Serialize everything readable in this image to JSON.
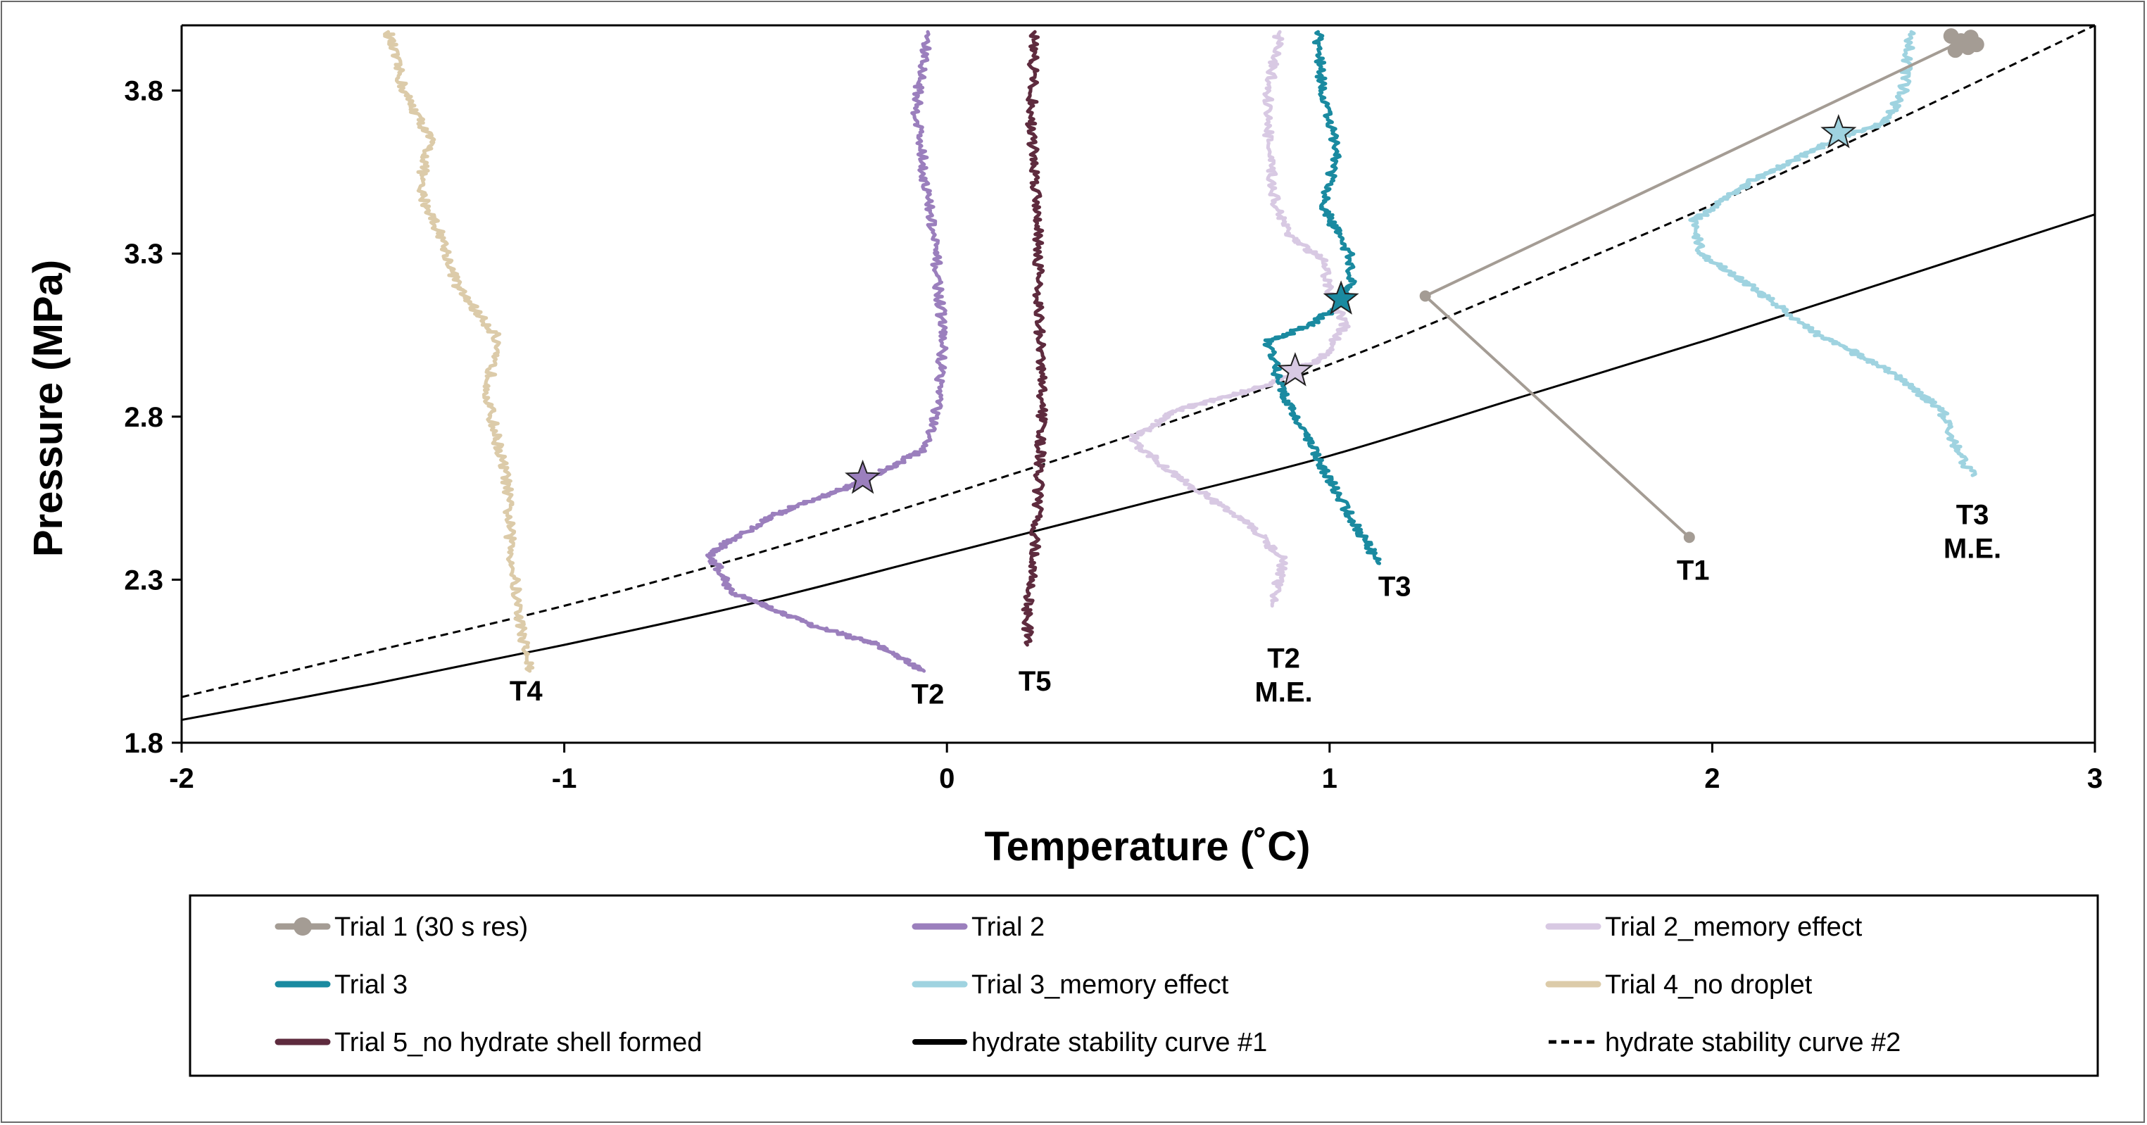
{
  "chart_data": {
    "type": "line",
    "xlabel": "Temperature (˚C)",
    "ylabel": "Pressure (MPa)",
    "xlim": [
      -2,
      3
    ],
    "ylim": [
      1.8,
      4.0
    ],
    "x_ticks": [
      -2,
      -1,
      0,
      1,
      2,
      3
    ],
    "x_tick_labels": [
      "-2",
      "-1",
      "0",
      "1",
      "2",
      "3"
    ],
    "y_ticks": [
      1.8,
      2.3,
      2.8,
      3.3,
      3.8
    ],
    "y_tick_labels": [
      "1.8",
      "2.3",
      "2.8",
      "3.3",
      "3.8"
    ],
    "grid": false,
    "legend_position": "bottom",
    "series": [
      {
        "id": "trial1",
        "name": "Trial 1 (30 s res)",
        "color": "#a49c94",
        "style": "line-marker",
        "points": [
          [
            1.94,
            2.43
          ],
          [
            1.25,
            3.17
          ],
          [
            2.65,
            3.95
          ]
        ]
      },
      {
        "id": "trial2",
        "name": "Trial 2",
        "color": "#9b7fbd",
        "style": "noisy",
        "points": [
          [
            -0.05,
            3.98
          ],
          [
            -0.08,
            3.75
          ],
          [
            -0.06,
            3.55
          ],
          [
            -0.03,
            3.3
          ],
          [
            -0.01,
            3.05
          ],
          [
            -0.02,
            2.85
          ],
          [
            -0.06,
            2.7
          ],
          [
            -0.22,
            2.6
          ],
          [
            -0.45,
            2.5
          ],
          [
            -0.62,
            2.38
          ],
          [
            -0.56,
            2.26
          ],
          [
            -0.35,
            2.16
          ],
          [
            -0.18,
            2.1
          ],
          [
            -0.06,
            2.02
          ]
        ]
      },
      {
        "id": "trial2_me",
        "name": "Trial 2_memory effect",
        "color": "#d8c9e3",
        "style": "noisy",
        "points": [
          [
            0.87,
            3.98
          ],
          [
            0.84,
            3.8
          ],
          [
            0.84,
            3.6
          ],
          [
            0.86,
            3.45
          ],
          [
            0.9,
            3.35
          ],
          [
            0.98,
            3.28
          ],
          [
            1.0,
            3.18
          ],
          [
            1.04,
            3.08
          ],
          [
            0.98,
            2.98
          ],
          [
            0.85,
            2.9
          ],
          [
            0.6,
            2.82
          ],
          [
            0.48,
            2.73
          ],
          [
            0.62,
            2.6
          ],
          [
            0.78,
            2.48
          ],
          [
            0.88,
            2.36
          ],
          [
            0.85,
            2.22
          ]
        ]
      },
      {
        "id": "trial3",
        "name": "Trial 3",
        "color": "#1a8aa0",
        "style": "noisy",
        "points": [
          [
            0.97,
            3.98
          ],
          [
            0.98,
            3.8
          ],
          [
            1.02,
            3.6
          ],
          [
            0.98,
            3.45
          ],
          [
            1.05,
            3.3
          ],
          [
            1.06,
            3.22
          ],
          [
            1.02,
            3.14
          ],
          [
            0.95,
            3.08
          ],
          [
            0.84,
            3.03
          ],
          [
            0.87,
            2.9
          ],
          [
            0.92,
            2.78
          ],
          [
            0.98,
            2.65
          ],
          [
            1.05,
            2.5
          ],
          [
            1.13,
            2.35
          ]
        ]
      },
      {
        "id": "trial3_me",
        "name": "Trial 3_memory effect",
        "color": "#9fd3e0",
        "style": "noisy",
        "points": [
          [
            2.52,
            3.98
          ],
          [
            2.5,
            3.8
          ],
          [
            2.45,
            3.7
          ],
          [
            2.32,
            3.65
          ],
          [
            2.1,
            3.52
          ],
          [
            1.95,
            3.4
          ],
          [
            1.97,
            3.3
          ],
          [
            2.1,
            3.2
          ],
          [
            2.28,
            3.05
          ],
          [
            2.45,
            2.95
          ],
          [
            2.6,
            2.82
          ],
          [
            2.63,
            2.72
          ],
          [
            2.68,
            2.62
          ]
        ]
      },
      {
        "id": "trial4",
        "name": "Trial 4_no droplet",
        "color": "#dccba9",
        "style": "noisy",
        "points": [
          [
            -1.46,
            3.98
          ],
          [
            -1.42,
            3.8
          ],
          [
            -1.35,
            3.65
          ],
          [
            -1.38,
            3.5
          ],
          [
            -1.32,
            3.35
          ],
          [
            -1.28,
            3.2
          ],
          [
            -1.18,
            3.05
          ],
          [
            -1.2,
            2.85
          ],
          [
            -1.15,
            2.6
          ],
          [
            -1.14,
            2.4
          ],
          [
            -1.12,
            2.2
          ],
          [
            -1.09,
            2.02
          ]
        ]
      },
      {
        "id": "trial5",
        "name": "Trial 5_no hydrate shell formed",
        "color": "#5e2b3e",
        "style": "noisy",
        "points": [
          [
            0.23,
            3.98
          ],
          [
            0.22,
            3.7
          ],
          [
            0.24,
            3.4
          ],
          [
            0.24,
            3.1
          ],
          [
            0.25,
            2.85
          ],
          [
            0.24,
            2.6
          ],
          [
            0.23,
            2.4
          ],
          [
            0.21,
            2.2
          ],
          [
            0.21,
            2.1
          ]
        ]
      },
      {
        "id": "curve1",
        "name": "hydrate stability curve #1",
        "color": "#000000",
        "style": "solid",
        "points": [
          [
            -2,
            1.87
          ],
          [
            -1.5,
            1.98
          ],
          [
            -1,
            2.1
          ],
          [
            -0.5,
            2.23
          ],
          [
            0,
            2.38
          ],
          [
            0.5,
            2.53
          ],
          [
            1,
            2.68
          ],
          [
            1.5,
            2.86
          ],
          [
            2,
            3.04
          ],
          [
            2.5,
            3.23
          ],
          [
            3,
            3.42
          ]
        ]
      },
      {
        "id": "curve2",
        "name": "hydrate stability curve #2",
        "color": "#000000",
        "style": "dashed",
        "points": [
          [
            -2,
            1.94
          ],
          [
            -1.5,
            2.08
          ],
          [
            -1,
            2.22
          ],
          [
            -0.5,
            2.38
          ],
          [
            0,
            2.56
          ],
          [
            0.5,
            2.75
          ],
          [
            1,
            2.96
          ],
          [
            1.5,
            3.2
          ],
          [
            2,
            3.45
          ],
          [
            2.5,
            3.72
          ],
          [
            3,
            4.0
          ]
        ]
      }
    ],
    "stars": [
      {
        "x": -0.22,
        "y": 2.61,
        "color": "#9b7fbd"
      },
      {
        "x": 0.91,
        "y": 2.94,
        "color": "#d8c9e3"
      },
      {
        "x": 1.03,
        "y": 3.16,
        "color": "#1a8aa0"
      },
      {
        "x": 2.33,
        "y": 3.67,
        "color": "#9fd3e0"
      }
    ],
    "annotations": [
      {
        "lines": [
          "T4"
        ],
        "x": -1.1,
        "y": 1.93
      },
      {
        "lines": [
          "T2"
        ],
        "x": -0.05,
        "y": 1.92
      },
      {
        "lines": [
          "T5"
        ],
        "x": 0.23,
        "y": 1.96
      },
      {
        "lines": [
          "T2",
          "M.E."
        ],
        "x": 0.88,
        "y": 2.03
      },
      {
        "lines": [
          "T3"
        ],
        "x": 1.17,
        "y": 2.25
      },
      {
        "lines": [
          "T1"
        ],
        "x": 1.95,
        "y": 2.3
      },
      {
        "lines": [
          "T3",
          "M.E."
        ],
        "x": 2.68,
        "y": 2.47
      }
    ]
  }
}
